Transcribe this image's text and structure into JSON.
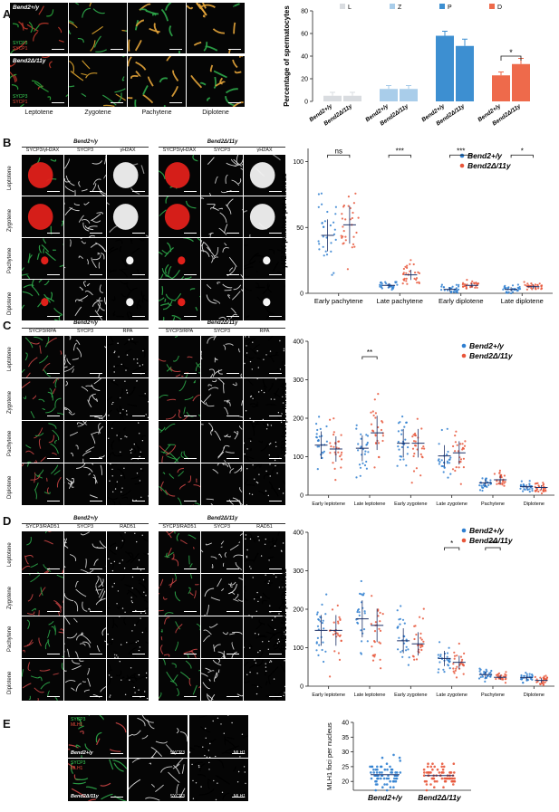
{
  "panels": {
    "A": {
      "letter": "A",
      "rows": [
        "Bend2+/y",
        "Bend2Δ/11y"
      ],
      "stain1": "SYCP3",
      "stain2": "SYCP1",
      "cols": [
        "Leptotene",
        "Zygotene",
        "Pachytene",
        "Diplotene"
      ],
      "chart": {
        "ylabel": "Percentage of spermatocytes",
        "legend": [
          {
            "code": "L",
            "color": "#d9dce0"
          },
          {
            "code": "Z",
            "color": "#a9cdea"
          },
          {
            "code": "P",
            "color": "#3d8fd1"
          },
          {
            "code": "D",
            "color": "#ee6a4b"
          }
        ],
        "yticks": [
          "0",
          "20",
          "40",
          "60",
          "80"
        ],
        "sig": "*",
        "xlabels": [
          "Bend2+/y",
          "Bend2Δ/11y",
          "Bend2+/y",
          "Bend2Δ/11y",
          "Bend2+/y",
          "Bend2Δ/11y",
          "Bend2+/y",
          "Bend2Δ/11y"
        ]
      }
    },
    "B": {
      "letter": "B",
      "genotypes": [
        "Bend2+/y",
        "Bend2Δ/11y"
      ],
      "cols": [
        "SYCP3/γH2AX",
        "SYCP3",
        "γH2AX"
      ],
      "rows": [
        "Leptotene",
        "Zygotene",
        "Pachytene",
        "Diplotene"
      ],
      "chart": {
        "ylabel": "γH2AX patches per nucleus",
        "yticks": [
          "0",
          "50",
          "100"
        ],
        "xlabels": [
          "Early pachytene",
          "Late pachytene",
          "Early diplotene",
          "Late diplotene"
        ],
        "sig": [
          "ns",
          "***",
          "***",
          "*"
        ],
        "legend": [
          "Bend2+/y",
          "Bend2Δ/11y"
        ]
      }
    },
    "C": {
      "letter": "C",
      "genotypes": [
        "Bend2+/y",
        "Bend2Δ/11y"
      ],
      "cols": [
        "SYCP3/RPA",
        "SYCP3",
        "RPA"
      ],
      "rows": [
        "Leptotene",
        "Zygotene",
        "Pachytene",
        "Diplotene"
      ],
      "chart": {
        "ylabel": "RPA foci per nucleus",
        "yticks": [
          "0",
          "100",
          "200",
          "300",
          "400"
        ],
        "xlabels": [
          "Early leptotene",
          "Late leptotene",
          "Early zygotene",
          "Late zygotene",
          "Pachytene",
          "Diplotene"
        ],
        "sig": [
          "**"
        ],
        "legend": [
          "Bend2+/y",
          "Bend2Δ/11y"
        ]
      }
    },
    "D": {
      "letter": "D",
      "genotypes": [
        "Bend2+/y",
        "Bend2Δ/11y"
      ],
      "cols": [
        "SYCP3/RAD51",
        "SYCP3",
        "RAD51"
      ],
      "rows": [
        "Leptotene",
        "Zygotene",
        "Pachytene",
        "Diplotene"
      ],
      "chart": {
        "ylabel": "RAD51 foci per nucleus",
        "yticks": [
          "0",
          "100",
          "200",
          "300",
          "400"
        ],
        "xlabels": [
          "Early leptotene",
          "Late leptotene",
          "Early zygotene",
          "Late zygotene",
          "Pachytene",
          "Diplotene"
        ],
        "sig": [
          "*",
          "***"
        ],
        "legend": [
          "Bend2+/y",
          "Bend2Δ/11y"
        ]
      }
    },
    "E": {
      "letter": "E",
      "stain1": "SYCP3",
      "stain2": "MLH1",
      "rows": [
        "Bend2+/y",
        "Bend2Δ/11y"
      ],
      "cols": [
        "SYCP3",
        "MLH1"
      ],
      "chart": {
        "ylabel": "MLH1 foci per nucleus",
        "yticks": [
          "20",
          "25",
          "30",
          "35",
          "40"
        ],
        "xlabels": [
          "Bend2+/y",
          "Bend2Δ/11y"
        ]
      }
    }
  },
  "chart_data": [
    {
      "type": "bar",
      "title": "",
      "ylabel": "Percentage of spermatocytes",
      "ylim": [
        0,
        80
      ],
      "categories": [
        "L",
        "Z",
        "P",
        "D"
      ],
      "series": [
        {
          "name": "Bend2+/y",
          "values": [
            5,
            11,
            58,
            23
          ]
        },
        {
          "name": "Bend2Δ/11y",
          "values": [
            5,
            11,
            49,
            33
          ]
        }
      ]
    },
    {
      "type": "scatter",
      "ylabel": "γH2AX patches per nucleus",
      "ylim": [
        0,
        110
      ],
      "categories": [
        "Early pachytene",
        "Late pachytene",
        "Early diplotene",
        "Late diplotene"
      ],
      "series": [
        {
          "name": "Bend2+/y",
          "mean": [
            44,
            6,
            3,
            3
          ]
        },
        {
          "name": "Bend2Δ/11y",
          "mean": [
            52,
            14,
            6,
            5
          ]
        }
      ]
    },
    {
      "type": "scatter",
      "ylabel": "RPA foci per nucleus",
      "ylim": [
        0,
        400
      ],
      "categories": [
        "Early leptotene",
        "Late leptotene",
        "Early zygotene",
        "Late zygotene",
        "Pachytene",
        "Diplotene"
      ],
      "series": [
        {
          "name": "Bend2+/y",
          "mean": [
            130,
            122,
            135,
            102,
            32,
            22
          ]
        },
        {
          "name": "Bend2Δ/11y",
          "mean": [
            120,
            162,
            135,
            110,
            40,
            20
          ]
        }
      ]
    },
    {
      "type": "scatter",
      "ylabel": "RAD51 foci per nucleus",
      "ylim": [
        0,
        400
      ],
      "categories": [
        "Early leptotene",
        "Late leptotene",
        "Early zygotene",
        "Late zygotene",
        "Pachytene",
        "Diplotene"
      ],
      "series": [
        {
          "name": "Bend2+/y",
          "mean": [
            145,
            175,
            118,
            72,
            30,
            22
          ]
        },
        {
          "name": "Bend2Δ/11y",
          "mean": [
            145,
            158,
            110,
            62,
            23,
            15
          ]
        }
      ]
    },
    {
      "type": "scatter",
      "ylabel": "MLH1 foci per nucleus",
      "ylim": [
        17,
        40
      ],
      "categories": [
        "Bend2+/y",
        "Bend2Δ/11y"
      ],
      "series": [
        {
          "name": "MLH1",
          "mean": [
            22.3,
            22.0
          ]
        }
      ]
    }
  ]
}
